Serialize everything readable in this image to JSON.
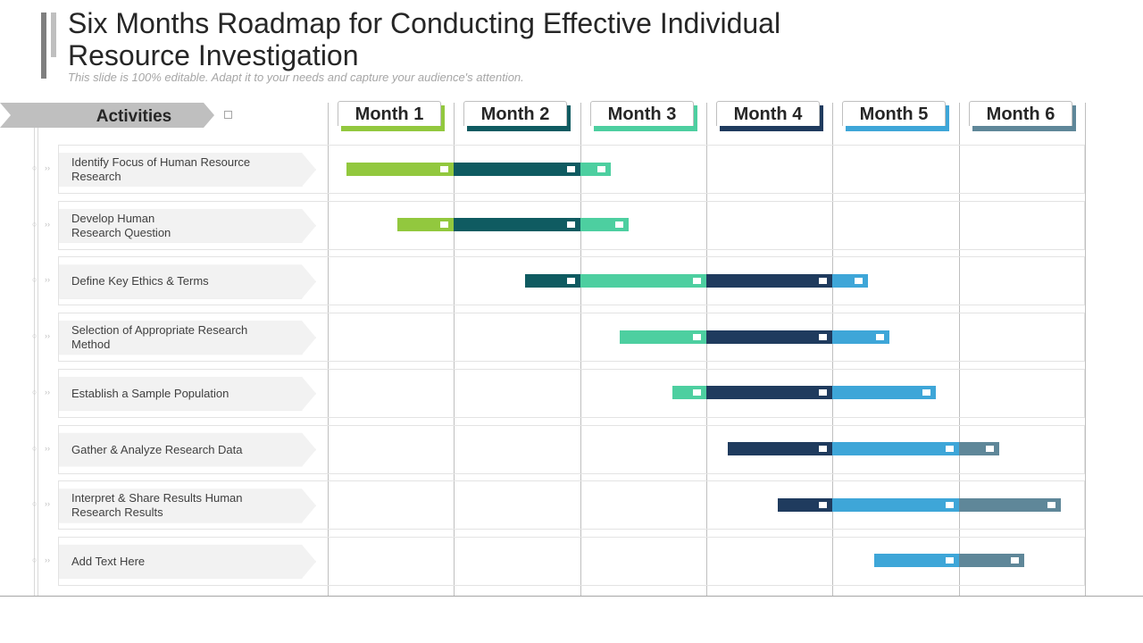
{
  "header": {
    "title": "Six Months Roadmap for Conducting Effective Individual Resource Investigation",
    "subtitle": "This slide is 100% editable. Adapt it to your needs and capture your audience's attention."
  },
  "activities_label": "Activities",
  "months": [
    "Month 1",
    "Month 2",
    "Month 3",
    "Month 4",
    "Month 5",
    "Month 6"
  ],
  "activities": [
    "Identify Focus of Human Resource\nResearch",
    "Develop  Human\nResearch Question",
    "Define  Key Ethics & Terms",
    "Selection of Appropriate  Research Method",
    "Establish a Sample Population",
    "Gather  & Analyze Research  Data",
    "Interpret  & Share Results Human\nResearch Results",
    "Add Text Here"
  ],
  "colors": {
    "month_1": "#92c83e",
    "month_2": "#0f5b61",
    "month_3": "#4dcfa0",
    "month_4": "#1f3b5e",
    "month_5": "#3ea6d8",
    "month_6": "#5f8799"
  },
  "chart_data": {
    "type": "gantt",
    "unit": "month",
    "tasks": [
      {
        "activity": "Identify Focus of Human Resource Research",
        "segments": [
          {
            "month": 1,
            "start": 0.15,
            "end": 1.0
          },
          {
            "month": 2,
            "start": 0.0,
            "end": 1.0
          },
          {
            "month": 3,
            "start": 0.0,
            "end": 0.24
          }
        ]
      },
      {
        "activity": "Develop Human Research Question",
        "segments": [
          {
            "month": 1,
            "start": 0.55,
            "end": 1.0
          },
          {
            "month": 2,
            "start": 0.0,
            "end": 1.0
          },
          {
            "month": 3,
            "start": 0.0,
            "end": 0.38
          }
        ]
      },
      {
        "activity": "Define Key Ethics & Terms",
        "segments": [
          {
            "month": 2,
            "start": 0.56,
            "end": 1.0
          },
          {
            "month": 3,
            "start": 0.0,
            "end": 1.0
          },
          {
            "month": 4,
            "start": 0.0,
            "end": 1.0
          },
          {
            "month": 5,
            "start": 0.0,
            "end": 0.28
          }
        ]
      },
      {
        "activity": "Selection of Appropriate Research Method",
        "segments": [
          {
            "month": 3,
            "start": 0.31,
            "end": 1.0
          },
          {
            "month": 4,
            "start": 0.0,
            "end": 1.0
          },
          {
            "month": 5,
            "start": 0.0,
            "end": 0.45
          }
        ]
      },
      {
        "activity": "Establish a Sample Population",
        "segments": [
          {
            "month": 3,
            "start": 0.73,
            "end": 1.0
          },
          {
            "month": 4,
            "start": 0.0,
            "end": 1.0
          },
          {
            "month": 5,
            "start": 0.0,
            "end": 0.82
          }
        ]
      },
      {
        "activity": "Gather & Analyze Research Data",
        "segments": [
          {
            "month": 4,
            "start": 0.17,
            "end": 1.0
          },
          {
            "month": 5,
            "start": 0.0,
            "end": 1.0
          },
          {
            "month": 6,
            "start": 0.0,
            "end": 0.32
          }
        ]
      },
      {
        "activity": "Interpret & Share Results Human Research Results",
        "segments": [
          {
            "month": 4,
            "start": 0.57,
            "end": 1.0
          },
          {
            "month": 5,
            "start": 0.0,
            "end": 1.0
          },
          {
            "month": 6,
            "start": 0.0,
            "end": 0.81
          }
        ]
      },
      {
        "activity": "Add Text Here",
        "segments": [
          {
            "month": 5,
            "start": 0.33,
            "end": 1.0
          },
          {
            "month": 6,
            "start": 0.0,
            "end": 0.52
          }
        ]
      }
    ]
  }
}
